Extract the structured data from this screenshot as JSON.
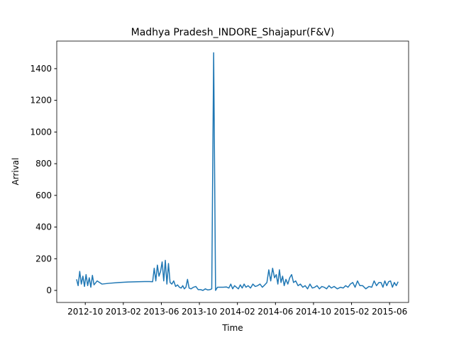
{
  "chart_data": {
    "type": "line",
    "title": "Madhya Pradesh_INDORE_Shajapur(F&V)",
    "xlabel": "Time",
    "ylabel": "Arrival",
    "x": [
      "2012-09",
      "2012-09",
      "2012-09",
      "2012-09",
      "2012-09",
      "2012-09",
      "2012-10",
      "2012-10",
      "2012-10",
      "2012-10",
      "2012-10",
      "2012-10",
      "2012-11",
      "2012-11",
      "2012-12",
      "2013-01",
      "2013-02",
      "2013-03",
      "2013-04",
      "2013-04",
      "2013-05",
      "2013-05",
      "2013-05",
      "2013-05",
      "2013-05",
      "2013-05",
      "2013-06",
      "2013-06",
      "2013-06",
      "2013-06",
      "2013-06",
      "2013-06",
      "2013-07",
      "2013-07",
      "2013-07",
      "2013-07",
      "2013-07",
      "2013-08",
      "2013-08",
      "2013-08",
      "2013-08",
      "2013-08",
      "2013-08",
      "2013-09",
      "2013-09",
      "2013-09",
      "2013-09",
      "2013-10",
      "2013-10",
      "2013-10",
      "2013-10",
      "2013-11",
      "2013-11",
      "2013-11",
      "2013-11",
      "2013-11",
      "2013-12",
      "2013-12",
      "2013-12",
      "2014-01",
      "2014-01",
      "2014-01",
      "2014-01",
      "2014-01",
      "2014-02",
      "2014-02",
      "2014-02",
      "2014-02",
      "2014-02",
      "2014-03",
      "2014-03",
      "2014-03",
      "2014-03",
      "2014-04",
      "2014-04",
      "2014-04",
      "2014-04",
      "2014-05",
      "2014-05",
      "2014-05",
      "2014-05",
      "2014-05",
      "2014-06",
      "2014-06",
      "2014-06",
      "2014-06",
      "2014-06",
      "2014-06",
      "2014-07",
      "2014-07",
      "2014-07",
      "2014-07",
      "2014-07",
      "2014-08",
      "2014-08",
      "2014-08",
      "2014-08",
      "2014-09",
      "2014-09",
      "2014-09",
      "2014-09",
      "2014-10",
      "2014-10",
      "2014-10",
      "2014-10",
      "2014-11",
      "2014-11",
      "2014-11",
      "2014-11",
      "2014-12",
      "2014-12",
      "2014-12",
      "2015-01",
      "2015-01",
      "2015-01",
      "2015-01",
      "2015-02",
      "2015-02",
      "2015-02",
      "2015-02",
      "2015-03",
      "2015-03",
      "2015-03",
      "2015-04",
      "2015-04",
      "2015-04",
      "2015-04",
      "2015-05",
      "2015-05",
      "2015-05",
      "2015-05",
      "2015-05",
      "2015-06",
      "2015-06",
      "2015-06",
      "2015-06",
      "2015-06"
    ],
    "series": [
      {
        "name": "Arrival",
        "color": "#1f77b4",
        "values": [
          70,
          30,
          120,
          40,
          90,
          25,
          100,
          30,
          80,
          20,
          95,
          35,
          60,
          40,
          45,
          50,
          53,
          55,
          56,
          56,
          55,
          140,
          60,
          160,
          90,
          120,
          180,
          60,
          190,
          40,
          170,
          50,
          40,
          60,
          25,
          35,
          20,
          15,
          30,
          10,
          20,
          70,
          15,
          10,
          20,
          25,
          5,
          5,
          0,
          10,
          3,
          5,
          10,
          1500,
          0,
          20,
          20,
          20,
          22,
          15,
          40,
          10,
          30,
          20,
          10,
          35,
          15,
          40,
          20,
          30,
          15,
          40,
          25,
          30,
          40,
          20,
          35,
          50,
          130,
          60,
          140,
          80,
          100,
          40,
          130,
          50,
          90,
          30,
          70,
          40,
          80,
          100,
          50,
          60,
          30,
          40,
          20,
          30,
          10,
          40,
          15,
          20,
          30,
          10,
          25,
          20,
          10,
          30,
          15,
          25,
          10,
          20,
          15,
          30,
          20,
          40,
          50,
          20,
          60,
          30,
          30,
          10,
          25,
          20,
          60,
          30,
          50,
          50,
          20,
          60,
          30,
          55,
          60,
          20,
          50,
          30,
          55
        ]
      }
    ],
    "xlim": [
      "2012-07",
      "2015-08"
    ],
    "xticks": [
      "2012-10",
      "2013-02",
      "2013-06",
      "2013-10",
      "2014-02",
      "2014-06",
      "2014-10",
      "2015-02",
      "2015-06"
    ],
    "ylim": [
      -76,
      1574
    ],
    "yticks": [
      0,
      200,
      400,
      600,
      800,
      1000,
      1200,
      1400
    ],
    "grid": false
  }
}
